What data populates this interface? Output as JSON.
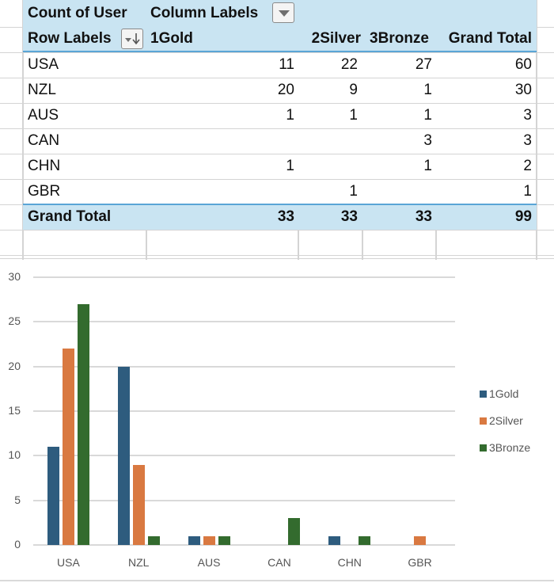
{
  "pivot": {
    "value_field": "Count of User",
    "column_labels": "Column Labels",
    "row_labels": "Row Labels",
    "columns": [
      "1Gold",
      "2Silver",
      "3Bronze",
      "Grand Total"
    ],
    "rows": [
      {
        "label": "USA",
        "values": [
          "11",
          "22",
          "27",
          "60"
        ]
      },
      {
        "label": "NZL",
        "values": [
          "20",
          "9",
          "1",
          "30"
        ]
      },
      {
        "label": "AUS",
        "values": [
          "1",
          "1",
          "1",
          "3"
        ]
      },
      {
        "label": "CAN",
        "values": [
          "",
          "",
          "3",
          "3"
        ]
      },
      {
        "label": "CHN",
        "values": [
          "1",
          "",
          "1",
          "2"
        ]
      },
      {
        "label": "GBR",
        "values": [
          "",
          "1",
          "",
          "1"
        ]
      }
    ],
    "grand_total": {
      "label": "Grand Total",
      "values": [
        "33",
        "33",
        "33",
        "99"
      ]
    },
    "icons": {
      "column_filter": "dropdown-triangle-icon",
      "row_filter": "sort-filter-icon"
    }
  },
  "chart_data": {
    "type": "bar",
    "title": "",
    "xlabel": "",
    "ylabel": "",
    "categories": [
      "USA",
      "NZL",
      "AUS",
      "CAN",
      "CHN",
      "GBR"
    ],
    "series": [
      {
        "name": "1Gold",
        "color": "#2e5c7e",
        "values": [
          11,
          20,
          1,
          0,
          1,
          0
        ]
      },
      {
        "name": "2Silver",
        "color": "#d97941",
        "values": [
          22,
          9,
          1,
          0,
          0,
          1
        ]
      },
      {
        "name": "3Bronze",
        "color": "#336b2e",
        "values": [
          27,
          1,
          1,
          3,
          1,
          0
        ]
      }
    ],
    "ylim": [
      0,
      30
    ],
    "yticks": [
      "0",
      "5",
      "10",
      "15",
      "20",
      "25",
      "30"
    ],
    "grid": true,
    "legend_position": "right"
  }
}
